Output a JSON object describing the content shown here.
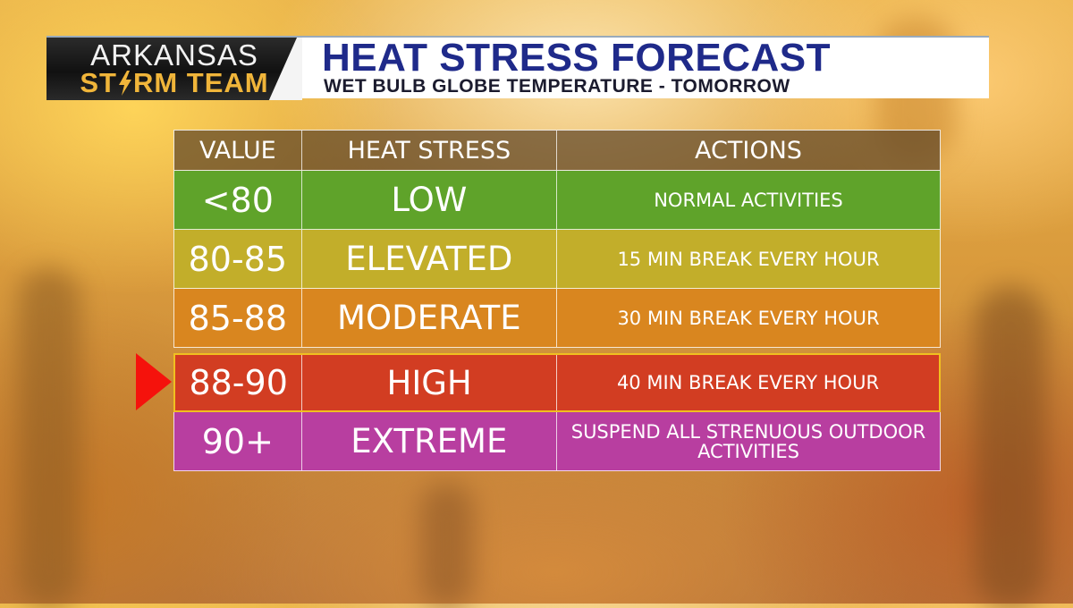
{
  "logo": {
    "line1": "ARKANSAS",
    "line2_part1": "ST",
    "line2_part2": "RM TEAM",
    "bolt_icon": "lightning-bolt-icon"
  },
  "title": {
    "main": "HEAT STRESS FORECAST",
    "sub": "WET BULB GLOBE TEMPERATURE - TOMORROW"
  },
  "table": {
    "headers": [
      "VALUE",
      "HEAT STRESS",
      "ACTIONS"
    ],
    "rows": [
      {
        "value": "<80",
        "level": "LOW",
        "action": "NORMAL ACTIVITIES",
        "color": "#5fa32a"
      },
      {
        "value": "80-85",
        "level": "ELEVATED",
        "action": "15 MIN BREAK EVERY HOUR",
        "color": "#c2ae2a"
      },
      {
        "value": "85-88",
        "level": "MODERATE",
        "action": "30 MIN BREAK EVERY HOUR",
        "color": "#d9861f"
      },
      {
        "value": "88-90",
        "level": "HIGH",
        "action": "40 MIN BREAK EVERY HOUR",
        "color": "#d23d22"
      },
      {
        "value": "90+",
        "level": "EXTREME",
        "action": "SUSPEND ALL STRENUOUS OUTDOOR ACTIVITIES",
        "color": "#b83ea0"
      }
    ],
    "highlight_row": 3
  },
  "colors": {
    "title_blue": "#1f2a8a",
    "arrow_red": "#f5120c",
    "highlight_border": "#f0c020"
  }
}
